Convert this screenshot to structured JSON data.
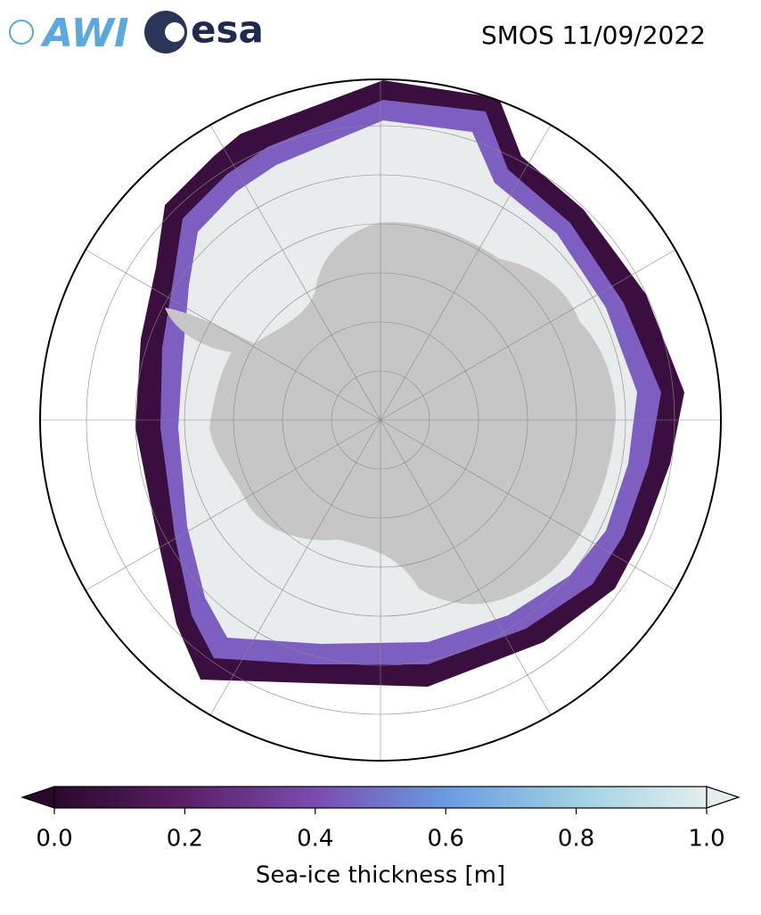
{
  "header": {
    "logos": [
      "AWI",
      "esa"
    ],
    "title": "SMOS 11/09/2022"
  },
  "colorbar": {
    "label": "Sea-ice thickness [m]",
    "lim": [
      0,
      1
    ],
    "ticks": [
      {
        "value": 0,
        "label": "0.0"
      },
      {
        "value": 0.2,
        "label": "0.2"
      },
      {
        "value": 0.4,
        "label": "0.4"
      },
      {
        "value": 0.6,
        "label": "0.6"
      },
      {
        "value": 0.8,
        "label": "0.8"
      },
      {
        "value": 1,
        "label": "1.0"
      }
    ],
    "colors": [
      "#2a0a2c",
      "#5a1f66",
      "#7a4bb0",
      "#6a9be2",
      "#9fd0e2",
      "#e4eeee"
    ]
  }
}
